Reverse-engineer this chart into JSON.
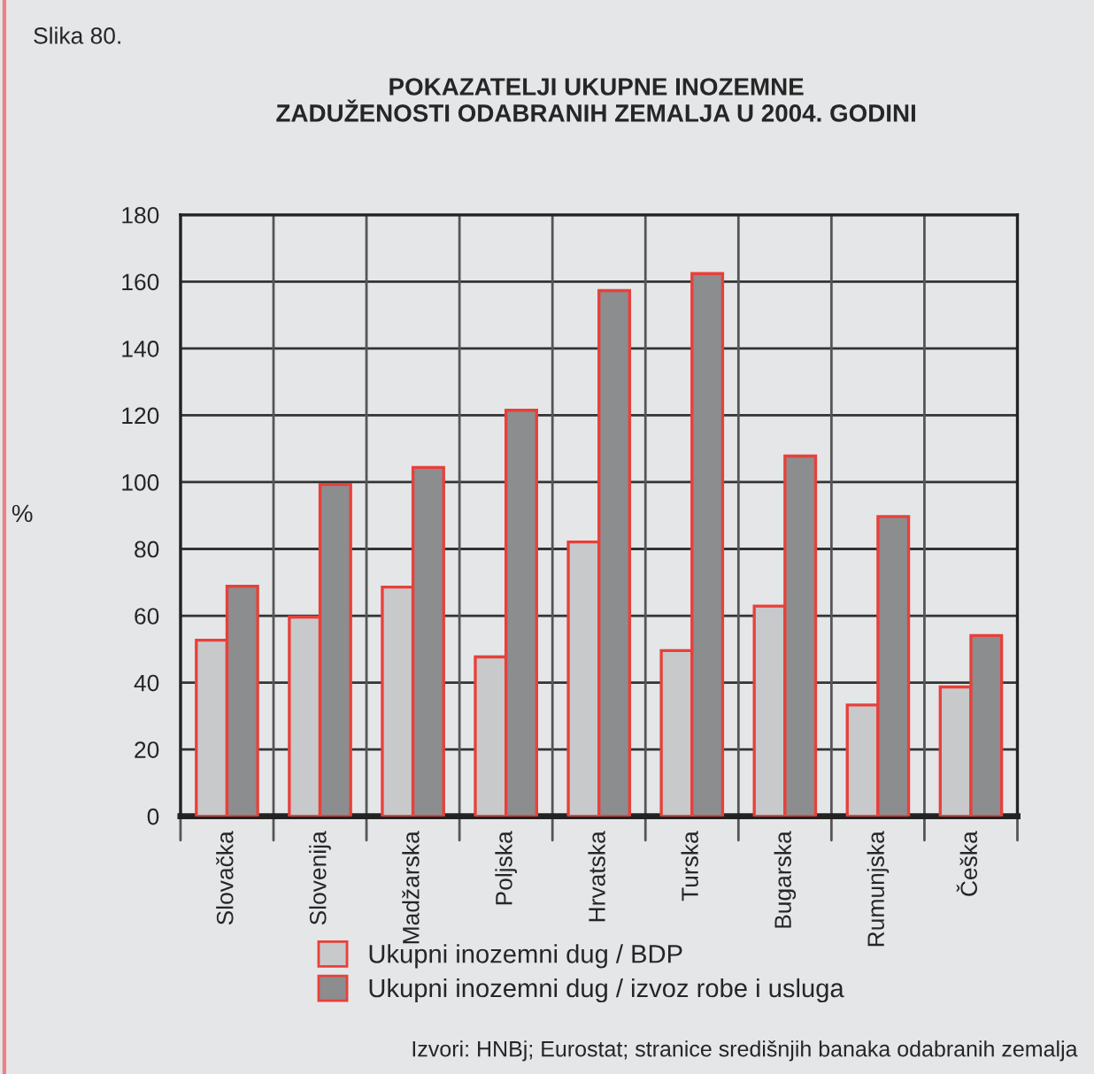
{
  "chart_data": {
    "type": "bar",
    "title": "POKAZATELJI UKUPNE INOZEMNE\nZADUŽENOSTI ODABRANIH ZEMALJA U 2004. GODINI",
    "ylabel": "%",
    "annotations": [
      "Slika 80.",
      "Izvori: HNBj; Eurostat; stranice središnjih banaka odabranih zemalja"
    ],
    "categories": [
      "Slovačka",
      "Slovenija",
      "Madžarska",
      "Poljska",
      "Hrvatska",
      "Turska",
      "Bugarska",
      "Rumunjska",
      "Češka"
    ],
    "series": [
      {
        "name": "Ukupni inozemni dug / BDP",
        "color": "#c8c9cb",
        "values": [
          52.7,
          59.6,
          68.6,
          47.7,
          82.1,
          49.6,
          62.9,
          33.3,
          38.7
        ]
      },
      {
        "name": "Ukupni inozemni dug / izvoz robe i usluga",
        "color": "#8c8d8f",
        "values": [
          68.8,
          99.3,
          104.4,
          121.5,
          157.3,
          162.4,
          107.8,
          89.7,
          54.1
        ]
      }
    ],
    "ylim": [
      0,
      180
    ],
    "yticks": [
      0,
      20,
      40,
      60,
      80,
      100,
      120,
      140,
      160,
      180
    ],
    "grid": true,
    "legend": "bottom"
  }
}
